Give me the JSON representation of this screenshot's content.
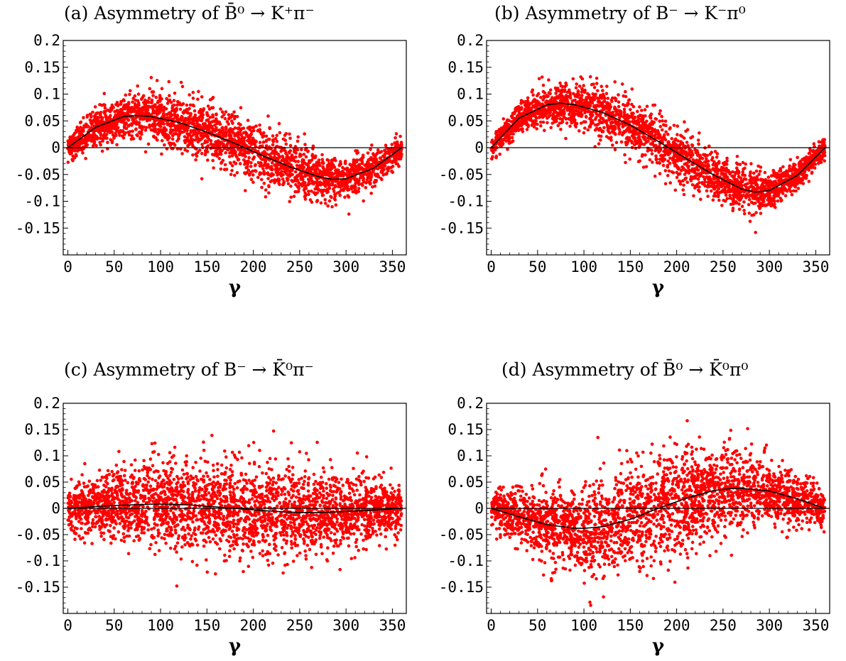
{
  "chart_data": [
    {
      "type": "scatter",
      "panel": "a",
      "title_prefix": "(a) Asymmetry of ",
      "title_math": "B̄⁰ → K⁺π⁻",
      "xlabel": "γ",
      "ylabel": "",
      "xlim": [
        -5,
        365
      ],
      "ylim": [
        -0.2,
        0.2
      ],
      "xticks": [
        "0",
        "50",
        "100",
        "150",
        "200",
        "250",
        "300",
        "350"
      ],
      "yticks": [
        "0.2",
        "0.15",
        "0.1",
        "0.05",
        "0",
        "-0.05",
        "-0.1",
        "-0.15"
      ],
      "series": [
        {
          "kind": "scatter",
          "color": "#ff0000",
          "points_generator": {
            "n": 2600,
            "center_amplitude": 0.06,
            "phase_deg": -20,
            "spread_min": 0.022,
            "spread_max": 0.05
          }
        },
        {
          "kind": "curve",
          "color": "#000000",
          "x": [
            0,
            30,
            60,
            75,
            90,
            120,
            150,
            180,
            210,
            240,
            270,
            285,
            300,
            330,
            360
          ],
          "y": [
            0.0,
            0.038,
            0.058,
            0.06,
            0.058,
            0.047,
            0.029,
            0.008,
            -0.015,
            -0.036,
            -0.054,
            -0.059,
            -0.058,
            -0.038,
            0.0
          ]
        }
      ]
    },
    {
      "type": "scatter",
      "panel": "b",
      "title_prefix": "(b) Asymmetry of ",
      "title_math": "B⁻ → K⁻π⁰",
      "xlabel": "γ",
      "ylabel": "",
      "xlim": [
        -5,
        365
      ],
      "ylim": [
        -0.2,
        0.2
      ],
      "xticks": [
        "0",
        "50",
        "100",
        "150",
        "200",
        "250",
        "300",
        "350"
      ],
      "yticks": [
        "0.2",
        "0.15",
        "0.1",
        "0.05",
        "0",
        "-0.05",
        "-0.1",
        "-0.15"
      ],
      "series": [
        {
          "kind": "scatter",
          "color": "#ff0000",
          "points_generator": {
            "n": 2600,
            "center_amplitude": 0.083,
            "phase_deg": -20,
            "spread_min": 0.018,
            "spread_max": 0.045
          }
        },
        {
          "kind": "curve",
          "color": "#000000",
          "x": [
            0,
            30,
            60,
            75,
            90,
            120,
            150,
            180,
            210,
            240,
            270,
            285,
            300,
            330,
            360
          ],
          "y": [
            0.0,
            0.055,
            0.08,
            0.083,
            0.08,
            0.066,
            0.042,
            0.012,
            -0.02,
            -0.051,
            -0.077,
            -0.083,
            -0.08,
            -0.052,
            0.0
          ]
        }
      ]
    },
    {
      "type": "scatter",
      "panel": "c",
      "title_prefix": "(c) Asymmetry of ",
      "title_math": "B⁻ → K̄⁰π⁻",
      "xlabel": "γ",
      "ylabel": "",
      "xlim": [
        -5,
        365
      ],
      "ylim": [
        -0.2,
        0.2
      ],
      "xticks": [
        "0",
        "50",
        "100",
        "150",
        "200",
        "250",
        "300",
        "350"
      ],
      "yticks": [
        "0.2",
        "0.15",
        "0.1",
        "0.05",
        "0",
        "-0.05",
        "-0.1",
        "-0.15"
      ],
      "series": [
        {
          "kind": "scatter",
          "color": "#ff0000",
          "points_generator": {
            "n": 2900,
            "center_amplitude": 0.008,
            "phase_deg": 0,
            "spread_min": 0.04,
            "spread_max": 0.085
          }
        },
        {
          "kind": "curve",
          "color": "#000000",
          "x": [
            0,
            45,
            90,
            110,
            135,
            180,
            225,
            250,
            270,
            315,
            360
          ],
          "y": [
            0.0,
            0.005,
            0.008,
            0.008,
            0.006,
            0.0,
            -0.006,
            -0.008,
            -0.008,
            -0.005,
            0.0
          ]
        }
      ]
    },
    {
      "type": "scatter",
      "panel": "d",
      "title_prefix": "(d) Asymmetry of ",
      "title_math": "B̄⁰ → K̄⁰π⁰",
      "xlabel": "γ",
      "ylabel": "",
      "xlim": [
        -5,
        365
      ],
      "ylim": [
        -0.2,
        0.2
      ],
      "xticks": [
        "0",
        "50",
        "100",
        "150",
        "200",
        "250",
        "300",
        "350"
      ],
      "yticks": [
        "0.2",
        "0.15",
        "0.1",
        "0.05",
        "0",
        "-0.05",
        "-0.1",
        "-0.15"
      ],
      "series": [
        {
          "kind": "scatter",
          "color": "#ff0000",
          "points_generator": {
            "n": 2900,
            "center_amplitude": -0.038,
            "phase_deg": 10,
            "spread_min": 0.03,
            "spread_max": 0.09
          }
        },
        {
          "kind": "curve",
          "color": "#000000",
          "x": [
            0,
            30,
            60,
            90,
            100,
            120,
            150,
            180,
            210,
            240,
            260,
            270,
            300,
            330,
            360
          ],
          "y": [
            0.0,
            -0.016,
            -0.031,
            -0.038,
            -0.038,
            -0.035,
            -0.021,
            0.0,
            0.019,
            0.034,
            0.038,
            0.038,
            0.033,
            0.018,
            0.0
          ]
        }
      ]
    }
  ]
}
